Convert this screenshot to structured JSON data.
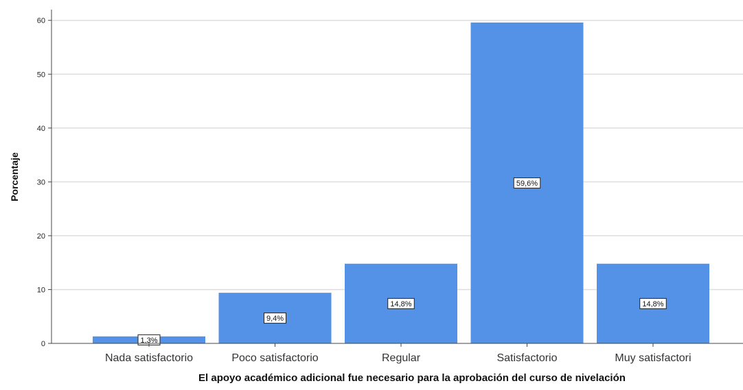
{
  "chart_data": {
    "type": "bar",
    "categories": [
      "Nada satisfactorio",
      "Poco satisfactorio",
      "Regular",
      "Satisfactorio",
      "Muy satisfactori"
    ],
    "values": [
      1.3,
      9.4,
      14.8,
      59.6,
      14.8
    ],
    "data_labels": [
      "1,3%",
      "9,4%",
      "14,8%",
      "59,6%",
      "14,8%"
    ],
    "xlabel": "El apoyo académico adicional fue necesario para la aprobación del curso de nivelación",
    "ylabel": "Porcentaje",
    "ylim": [
      0,
      62
    ],
    "yticks": [
      0,
      10,
      20,
      30,
      40,
      50,
      60
    ],
    "grid": true,
    "legend": "none",
    "bar_color": "#5392e6",
    "grid_color": "#dedede"
  }
}
